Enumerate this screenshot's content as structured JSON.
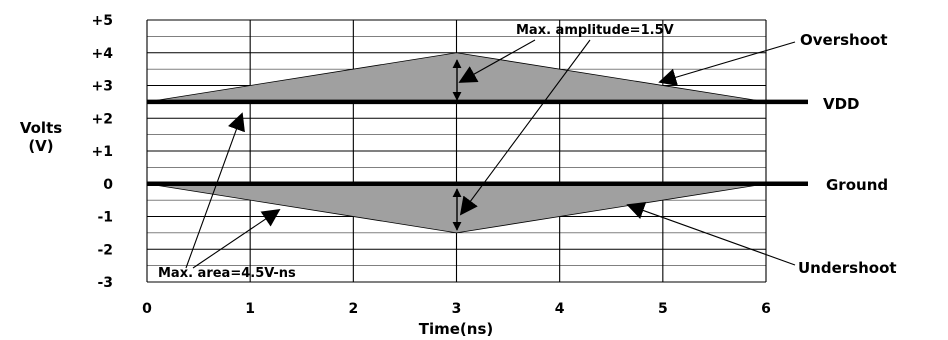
{
  "chart_data": {
    "type": "area",
    "xlabel": "Time(ns)",
    "ylabel_line1": "Volts",
    "ylabel_line2": "(V)",
    "xlim": [
      0,
      6
    ],
    "ylim": [
      -3,
      5
    ],
    "x_ticks": [
      "0",
      "1",
      "2",
      "3",
      "4",
      "5",
      "6"
    ],
    "y_ticks": [
      {
        "value": 5,
        "label": "+5"
      },
      {
        "value": 4,
        "label": "+4"
      },
      {
        "value": 3,
        "label": "+3"
      },
      {
        "value": 2,
        "label": "+2"
      },
      {
        "value": 1,
        "label": "+1"
      },
      {
        "value": 0,
        "label": "0"
      },
      {
        "value": -1,
        "label": "-1"
      },
      {
        "value": -2,
        "label": "-2"
      },
      {
        "value": -3,
        "label": "-3"
      }
    ],
    "grid": true,
    "series": [
      {
        "name": "Overshoot",
        "x": [
          0,
          3,
          6
        ],
        "y": [
          2.5,
          4,
          2.5
        ],
        "fill": "#a0a0a0"
      },
      {
        "name": "Undershoot",
        "x": [
          0,
          3,
          6
        ],
        "y": [
          0,
          -1.5,
          0
        ],
        "fill": "#a0a0a0"
      }
    ],
    "reference_lines": [
      {
        "name": "VDD",
        "y": 2.5
      },
      {
        "name": "Ground",
        "y": 0
      }
    ],
    "annotations": {
      "max_amplitude": "Max. amplitude=1.5V",
      "max_area": "Max. area=4.5V-ns",
      "overshoot": "Overshoot",
      "undershoot": "Undershoot",
      "vdd": "VDD",
      "ground": "Ground"
    }
  }
}
